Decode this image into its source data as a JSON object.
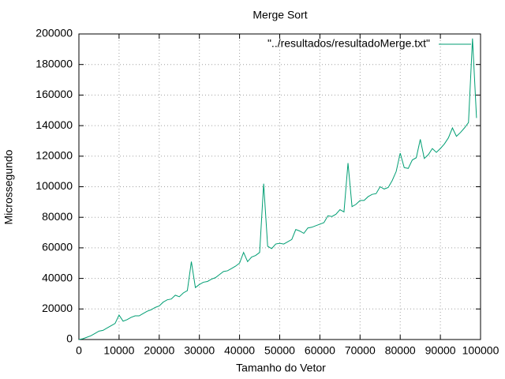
{
  "chart_data": {
    "type": "line",
    "title": "Merge Sort",
    "x_label": "Tamanho do Vetor",
    "y_label": "Microssegundo",
    "x": [
      0,
      1000,
      2000,
      3000,
      4000,
      5000,
      6000,
      7000,
      8000,
      9000,
      10000,
      11000,
      12000,
      13000,
      14000,
      15000,
      16000,
      17000,
      18000,
      19000,
      20000,
      21000,
      22000,
      23000,
      24000,
      25000,
      26000,
      27000,
      28000,
      29000,
      30000,
      31000,
      32000,
      33000,
      34000,
      35000,
      36000,
      37000,
      38000,
      39000,
      40000,
      41000,
      42000,
      43000,
      44000,
      45000,
      46000,
      47000,
      48000,
      49000,
      50000,
      51000,
      52000,
      53000,
      54000,
      55000,
      56000,
      57000,
      58000,
      59000,
      60000,
      61000,
      62000,
      63000,
      64000,
      65000,
      66000,
      67000,
      68000,
      69000,
      70000,
      71000,
      72000,
      73000,
      74000,
      75000,
      76000,
      77000,
      78000,
      79000,
      80000,
      81000,
      82000,
      83000,
      84000,
      85000,
      86000,
      87000,
      88000,
      89000,
      90000,
      91000,
      92000,
      93000,
      94000,
      95000,
      96000,
      97000,
      98000,
      99000
    ],
    "series": [
      {
        "name": "\"../resultados/resultadoMerge.txt\"",
        "color": "#009e73",
        "values": [
          0,
          500,
          1500,
          2500,
          4000,
          5500,
          6000,
          7500,
          9000,
          10500,
          16000,
          12000,
          13000,
          14500,
          15500,
          15500,
          17000,
          18500,
          19500,
          21000,
          22000,
          24500,
          26000,
          26500,
          29000,
          28000,
          30500,
          32000,
          51000,
          34000,
          36000,
          37500,
          38000,
          39500,
          40500,
          42500,
          44500,
          45000,
          46500,
          48000,
          50000,
          57000,
          51000,
          54000,
          55000,
          57000,
          102000,
          61000,
          59500,
          62500,
          63000,
          62500,
          64000,
          65500,
          72000,
          71000,
          69500,
          73000,
          73500,
          74500,
          75500,
          76500,
          81000,
          80500,
          82000,
          85000,
          83500,
          115500,
          87000,
          88500,
          91000,
          91000,
          93500,
          95000,
          95500,
          100000,
          98500,
          99500,
          104000,
          110000,
          122000,
          112500,
          112000,
          117500,
          119000,
          131000,
          118500,
          121000,
          125000,
          122500,
          125000,
          128000,
          132000,
          138500,
          133000,
          135500,
          138500,
          142000,
          197000,
          145000
        ]
      }
    ],
    "xlim": [
      0,
      100000
    ],
    "xticks": [
      0,
      10000,
      20000,
      30000,
      40000,
      50000,
      60000,
      70000,
      80000,
      90000,
      100000
    ],
    "ylim": [
      0,
      200000
    ],
    "yticks": [
      0,
      20000,
      40000,
      60000,
      80000,
      100000,
      120000,
      140000,
      160000,
      180000,
      200000
    ],
    "grid": true,
    "legend": "top-right"
  }
}
